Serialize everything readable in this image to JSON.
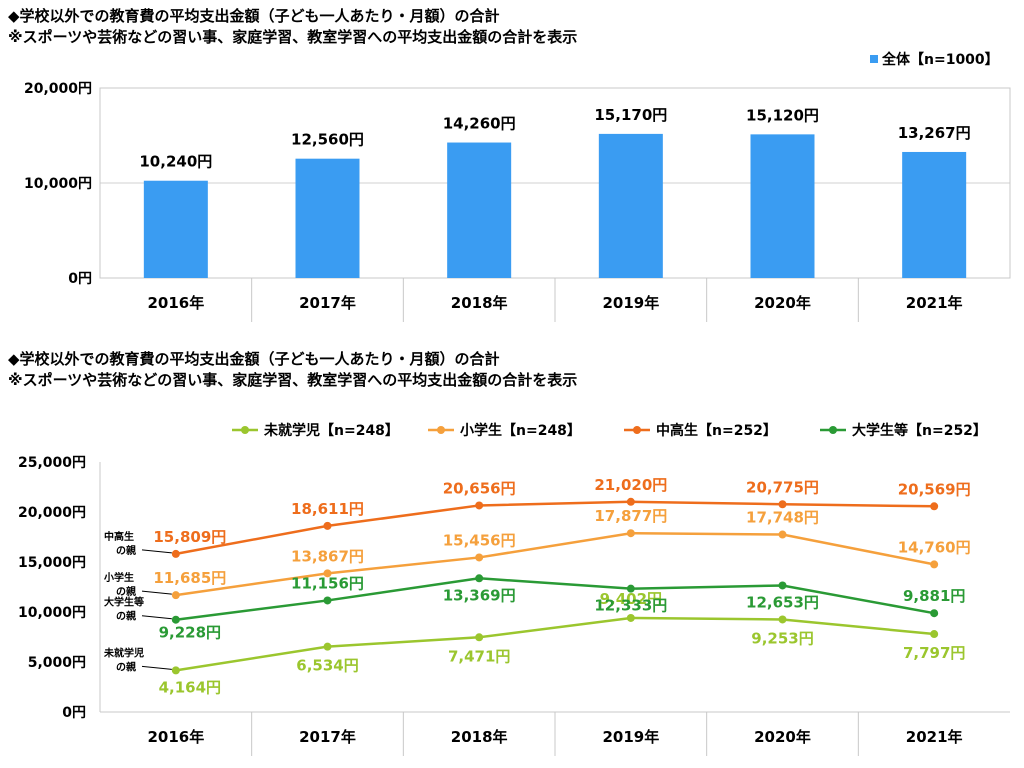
{
  "chart_data": [
    {
      "type": "bar",
      "title": "◆学校以外での教育費の平均支出金額（子ども一人あたり・月額）の合計",
      "subtitle": "※スポーツや芸術などの習い事、家庭学習、教室学習への平均支出金額の合計を表示",
      "categories": [
        "2016年",
        "2017年",
        "2018年",
        "2019年",
        "2020年",
        "2021年"
      ],
      "series": [
        {
          "name": "全体【n=1000】",
          "values": [
            10240,
            12560,
            14260,
            15170,
            15120,
            13267
          ],
          "labels": [
            "10,240円",
            "12,560円",
            "14,260円",
            "15,170円",
            "15,120円",
            "13,267円"
          ],
          "color": "#3a9cf2"
        }
      ],
      "ylim": [
        0,
        20000
      ],
      "yticks": [
        0,
        10000,
        20000
      ],
      "ytick_labels": [
        "0円",
        "10,000円",
        "20,000円"
      ],
      "legend_position": "top-right",
      "grid": "horizontal"
    },
    {
      "type": "line",
      "title": "◆学校以外での教育費の平均支出金額（子ども一人あたり・月額）の合計",
      "subtitle": "※スポーツや芸術などの習い事、家庭学習、教室学習への平均支出金額の合計を表示",
      "categories": [
        "2016年",
        "2017年",
        "2018年",
        "2019年",
        "2020年",
        "2021年"
      ],
      "series": [
        {
          "name": "未就学児【n=248】",
          "values": [
            4164,
            6534,
            7471,
            9402,
            9253,
            7797
          ],
          "labels": [
            "4,164円",
            "6,534円",
            "7,471円",
            "9,402円",
            "9,253円",
            "7,797円"
          ],
          "color": "#9bc62e",
          "side_label": [
            "未就学児",
            "の親"
          ]
        },
        {
          "name": "小学生【n=248】",
          "values": [
            11685,
            13867,
            15456,
            17877,
            17748,
            14760
          ],
          "labels": [
            "11,685円",
            "13,867円",
            "15,456円",
            "17,877円",
            "17,748円",
            "14,760円"
          ],
          "color": "#f5a03c",
          "side_label": [
            "小学生",
            "の親"
          ]
        },
        {
          "name": "中高生【n=252】",
          "values": [
            15809,
            18611,
            20656,
            21020,
            20775,
            20569
          ],
          "labels": [
            "15,809円",
            "18,611円",
            "20,656円",
            "21,020円",
            "20,775円",
            "20,569円"
          ],
          "color": "#ee6d1c",
          "side_label": [
            "中高生",
            "の親"
          ]
        },
        {
          "name": "大学生等【n=252】",
          "values": [
            9228,
            11156,
            13369,
            12333,
            12653,
            9881
          ],
          "labels": [
            "9,228円",
            "11,156円",
            "13,369円",
            "12,333円",
            "12,653円",
            "9,881円"
          ],
          "color": "#2a9a35",
          "side_label": [
            "大学生等",
            "の親"
          ]
        }
      ],
      "ylim": [
        0,
        25000
      ],
      "yticks": [
        0,
        5000,
        10000,
        15000,
        20000,
        25000
      ],
      "ytick_labels": [
        "0円",
        "5,000円",
        "10,000円",
        "15,000円",
        "20,000円",
        "25,000円"
      ],
      "legend_position": "top",
      "grid": "none"
    }
  ]
}
